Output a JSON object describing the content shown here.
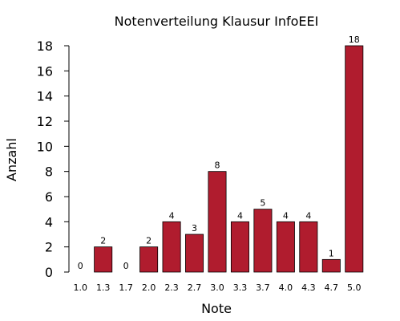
{
  "chart_data": {
    "type": "bar",
    "title": "Notenverteilung Klausur InfoEEI",
    "xlabel": "Note",
    "ylabel": "Anzahl",
    "categories": [
      "1.0",
      "1.3",
      "1.7",
      "2.0",
      "2.3",
      "2.7",
      "3.0",
      "3.3",
      "3.7",
      "4.0",
      "4.3",
      "4.7",
      "5.0"
    ],
    "values": [
      0,
      2,
      0,
      2,
      4,
      3,
      8,
      4,
      5,
      4,
      4,
      1,
      18
    ],
    "ylim": [
      0,
      18
    ],
    "yticks": [
      0,
      2,
      4,
      6,
      8,
      10,
      12,
      14,
      16,
      18
    ],
    "bar_color": "#b01c2e",
    "grid": false,
    "data_labels": true
  }
}
